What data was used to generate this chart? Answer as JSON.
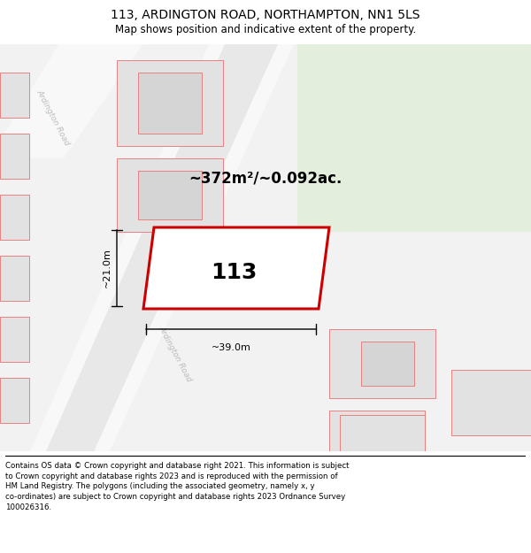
{
  "title": "113, ARDINGTON ROAD, NORTHAMPTON, NN1 5LS",
  "subtitle": "Map shows position and indicative extent of the property.",
  "footer": "Contains OS data © Crown copyright and database right 2021. This information is subject\nto Crown copyright and database rights 2023 and is reproduced with the permission of\nHM Land Registry. The polygons (including the associated geometry, namely x, y\nco-ordinates) are subject to Crown copyright and database rights 2023 Ordnance Survey\n100026316.",
  "area_label": "~372m²/~0.092ac.",
  "width_label": "~39.0m",
  "height_label": "~21.0m",
  "plot_number": "113",
  "bg_color": "#f2f2f2",
  "green_area_color": "#e4eedc",
  "road_color_white": "#f8f8f8",
  "road_color_gray": "#e8e8e8",
  "building_fill": "#e2e2e2",
  "building_outline": "#e88080",
  "highlight_outline": "#cc0000",
  "highlight_fill": "#ffffff",
  "road_label_color": "#bbbbbb",
  "title_fontsize": 10,
  "subtitle_fontsize": 8.5,
  "footer_fontsize": 6.2,
  "area_fontsize": 12,
  "plot_fontsize": 18,
  "dim_fontsize": 8
}
